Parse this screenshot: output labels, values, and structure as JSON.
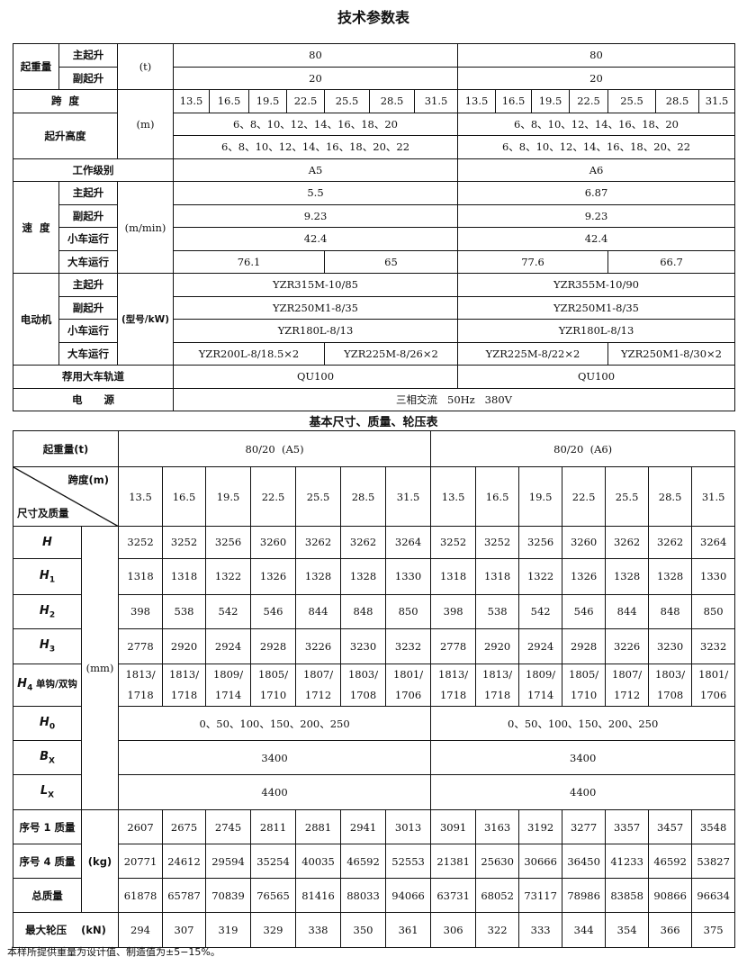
{
  "tech_table": {
    "title": "技术参数表",
    "lifting_capacity": {
      "label": "起重量",
      "unit": "(t)",
      "main_label": "主起升",
      "aux_label": "副起升",
      "main": [
        "80",
        "80"
      ],
      "aux": [
        "20",
        "20"
      ]
    },
    "span": {
      "label": "跨  度",
      "unit": "(m)",
      "values": [
        "13.5",
        "16.5",
        "19.5",
        "22.5",
        "25.5",
        "28.5",
        "31.5",
        "13.5",
        "16.5",
        "19.5",
        "22.5",
        "25.5",
        "28.5",
        "31.5"
      ]
    },
    "lift_height": {
      "label": "起升高度",
      "main": [
        "6、8、10、12、14、16、18、20",
        "6、8、10、12、14、16、18、20"
      ],
      "aux": [
        "6、8、10、12、14、16、18、20、22",
        "6、8、10、12、14、16、18、20、22"
      ]
    },
    "work_class": {
      "label": "工作级别",
      "values": [
        "A5",
        "A6"
      ]
    },
    "speed": {
      "label": "速  度",
      "unit": "(m/min)",
      "main_label": "主起升",
      "aux_label": "副起升",
      "trolley_label": "小车运行",
      "crane_label": "大车运行",
      "main": [
        "5.5",
        "6.87"
      ],
      "aux": [
        "9.23",
        "9.23"
      ],
      "trolley": [
        "42.4",
        "42.4"
      ],
      "crane": [
        "76.1",
        "65",
        "77.6",
        "66.7"
      ]
    },
    "motor": {
      "label": "电动机",
      "unit": "(型号/kW)",
      "main_label": "主起升",
      "aux_label": "副起升",
      "trolley_label": "小车运行",
      "crane_label": "大车运行",
      "main": [
        "YZR315M-10/85",
        "YZR355M-10/90"
      ],
      "aux": [
        "YZR250M1-8/35",
        "YZR250M1-8/35"
      ],
      "trolley": [
        "YZR180L-8/13",
        "YZR180L-8/13"
      ],
      "crane": [
        "YZR200L-8/18.5×2",
        "YZR225M-8/26×2",
        "YZR225M-8/22×2",
        "YZR250M1-8/30×2"
      ]
    },
    "rail": {
      "label": "荐用大车轨道",
      "values": [
        "QU100",
        "QU100"
      ]
    },
    "power": {
      "label": "电      源",
      "value": "三相交流   50Hz   380V"
    }
  },
  "dim_table": {
    "title": "基本尺寸、质量、轮压表",
    "capacity_label": "起重量(t)",
    "groups": [
      "80/20  (A5)",
      "80/20  (A6)"
    ],
    "span_label": "跨度(m)",
    "dim_label": "尺寸及质量",
    "spans": [
      "13.5",
      "16.5",
      "19.5",
      "22.5",
      "25.5",
      "28.5",
      "31.5",
      "13.5",
      "16.5",
      "19.5",
      "22.5",
      "25.5",
      "28.5",
      "31.5"
    ],
    "mm_unit": "(mm)",
    "kg_unit": "(kg)",
    "rows": [
      {
        "sym": "H",
        "sub": "",
        "values": [
          "3252",
          "3252",
          "3256",
          "3260",
          "3262",
          "3262",
          "3264",
          "3252",
          "3252",
          "3256",
          "3260",
          "3262",
          "3262",
          "3264"
        ]
      },
      {
        "sym": "H",
        "sub": "1",
        "values": [
          "1318",
          "1318",
          "1322",
          "1326",
          "1328",
          "1328",
          "1330",
          "1318",
          "1318",
          "1322",
          "1326",
          "1328",
          "1328",
          "1330"
        ]
      },
      {
        "sym": "H",
        "sub": "2",
        "values": [
          "398",
          "538",
          "542",
          "546",
          "844",
          "848",
          "850",
          "398",
          "538",
          "542",
          "546",
          "844",
          "848",
          "850"
        ]
      },
      {
        "sym": "H",
        "sub": "3",
        "values": [
          "2778",
          "2920",
          "2924",
          "2928",
          "3226",
          "3230",
          "3232",
          "2778",
          "2920",
          "2924",
          "2928",
          "3226",
          "3230",
          "3232"
        ]
      },
      {
        "sym": "H",
        "sub": "4",
        "suffix": " 单钩/双钩",
        "values": [
          "1813/\n1718",
          "1813/\n1718",
          "1809/\n1714",
          "1805/\n1710",
          "1807/\n1712",
          "1803/\n1708",
          "1801/\n1706",
          "1813/\n1718",
          "1813/\n1718",
          "1809/\n1714",
          "1805/\n1710",
          "1807/\n1712",
          "1803/\n1708",
          "1801/\n1706"
        ]
      },
      {
        "sym": "H",
        "sub": "0",
        "merged": [
          "0、50、100、150、200、250",
          "0、50、100、150、200、250"
        ]
      },
      {
        "sym": "B",
        "sub": "X",
        "merged": [
          "3400",
          "3400"
        ]
      },
      {
        "sym": "L",
        "sub": "X",
        "merged": [
          "4400",
          "4400"
        ]
      }
    ],
    "mass_rows": [
      {
        "label": "序号 1 质量",
        "values": [
          "2607",
          "2675",
          "2745",
          "2811",
          "2881",
          "2941",
          "3013",
          "3091",
          "3163",
          "3192",
          "3277",
          "3357",
          "3457",
          "3548"
        ]
      },
      {
        "label": "序号 4 质量",
        "values": [
          "20771",
          "24612",
          "29594",
          "35254",
          "40035",
          "46592",
          "52553",
          "21381",
          "25630",
          "30666",
          "36450",
          "41233",
          "46592",
          "53827"
        ]
      },
      {
        "label": "总质量",
        "values": [
          "61878",
          "65787",
          "70839",
          "76565",
          "81416",
          "88033",
          "94066",
          "63731",
          "68052",
          "73117",
          "78986",
          "83858",
          "90866",
          "96634"
        ]
      }
    ],
    "wheel_load": {
      "label": "最大轮压    (kN)",
      "values": [
        "294",
        "307",
        "319",
        "329",
        "338",
        "350",
        "361",
        "306",
        "322",
        "333",
        "344",
        "354",
        "366",
        "375"
      ]
    }
  },
  "note": "本样所提供重量为设计值、制造值为±5−15%。"
}
